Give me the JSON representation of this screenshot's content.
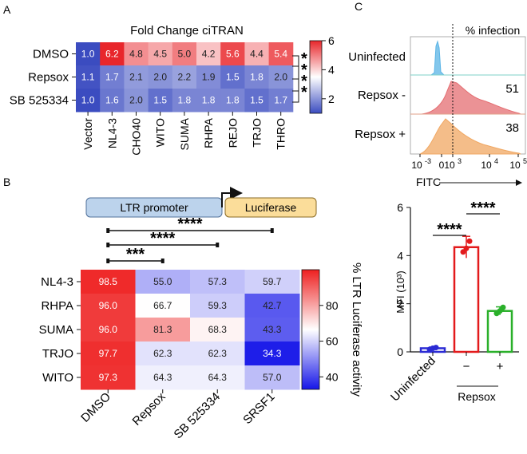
{
  "panels": {
    "a": "A",
    "b": "B",
    "c": "C"
  },
  "chart_data": [
    {
      "type": "heatmap",
      "panel": "A",
      "title": "Fold Change ciTRAN",
      "rows": [
        "DMSO",
        "Repsox",
        "SB 525334"
      ],
      "columns": [
        "Vector",
        "NL4-3",
        "CHO40",
        "WITO",
        "SUMA",
        "RHPA",
        "REJO",
        "TRJO",
        "THRO"
      ],
      "values": [
        [
          1.0,
          6.2,
          4.8,
          4.5,
          5.0,
          4.2,
          5.6,
          4.4,
          5.4
        ],
        [
          1.1,
          1.7,
          2.1,
          2.0,
          2.2,
          1.9,
          1.5,
          1.8,
          2.0
        ],
        [
          1.0,
          1.6,
          2.0,
          1.5,
          1.8,
          1.8,
          1.8,
          1.5,
          1.7
        ]
      ],
      "colorbar": {
        "min": 1,
        "max": 6,
        "ticks": [
          "6",
          "4",
          "2"
        ]
      },
      "colormap": [
        "#3b4cc0",
        "#ffffff",
        "#e8262b"
      ],
      "significance": [
        "*",
        "*",
        "*",
        "*"
      ]
    },
    {
      "type": "heatmap",
      "panel": "B",
      "construct": {
        "promoter": "LTR promoter",
        "reporter": "Luciferase"
      },
      "rows": [
        "NL4-3",
        "RHPA",
        "SUMA",
        "TRJO",
        "WITO"
      ],
      "columns": [
        "DMSO",
        "Repsox",
        "SB 525334",
        "SRSF1"
      ],
      "values": [
        [
          "98.5",
          "55.0",
          "57.3",
          "59.7"
        ],
        [
          "96.0",
          "66.7",
          "59.3",
          "42.7"
        ],
        [
          "96.0",
          "81.3",
          "68.3",
          "43.3"
        ],
        [
          "97.7",
          "62.3",
          "62.3",
          "34.3"
        ],
        [
          "97.3",
          "64.3",
          "64.3",
          "57.0"
        ]
      ],
      "colorbar": {
        "min": 33,
        "max": 100,
        "ticks": [
          "80",
          "60",
          "40"
        ],
        "label": "% LTR Luciferase activity"
      },
      "colormap": [
        "#1515e8",
        "#ffffff",
        "#ee2020"
      ],
      "significance": [
        {
          "from": "DMSO",
          "to": "Repsox",
          "stars": "***"
        },
        {
          "from": "DMSO",
          "to": "SB 525334",
          "stars": "****"
        },
        {
          "from": "DMSO",
          "to": "SRSF1",
          "stars": "****"
        }
      ]
    },
    {
      "type": "histogram",
      "panel": "C",
      "title": "% infection",
      "xlabel": "FITC",
      "x_ticks": [
        {
          "base": "10",
          "exp": "-3"
        },
        {
          "base": "0",
          "exp": ""
        },
        {
          "base": "10",
          "exp": "3"
        },
        {
          "base": "10",
          "exp": "4"
        },
        {
          "base": "10",
          "exp": "5"
        }
      ],
      "gate_x": "10^3",
      "samples": [
        {
          "name": "Uninfected",
          "percent": "",
          "color": "#5ab4e6"
        },
        {
          "name": "Repsox -",
          "percent": "51",
          "color": "#e46e72"
        },
        {
          "name": "Repsox +",
          "percent": "38",
          "color": "#f0a762"
        }
      ]
    },
    {
      "type": "bar",
      "panel": "C",
      "ylabel": "MFI (10³)",
      "ylim": [
        0,
        6
      ],
      "y_ticks": [
        "0",
        "2",
        "4",
        "6"
      ],
      "categories": [
        "Uninfected",
        "−",
        "+"
      ],
      "group_label": "Repsox",
      "values": [
        0.15,
        4.35,
        1.7
      ],
      "errors": [
        0.05,
        0.45,
        0.17
      ],
      "points": [
        [
          0.1,
          0.15,
          0.18
        ],
        [
          4.15,
          4.3,
          4.6
        ],
        [
          1.6,
          1.7,
          1.85
        ]
      ],
      "colors": [
        "#2b2bd4",
        "#e31a1c",
        "#2ab02a"
      ],
      "significance": [
        {
          "from": 0,
          "to": 1,
          "stars": "****"
        },
        {
          "from": 1,
          "to": 2,
          "stars": "****"
        }
      ]
    }
  ]
}
